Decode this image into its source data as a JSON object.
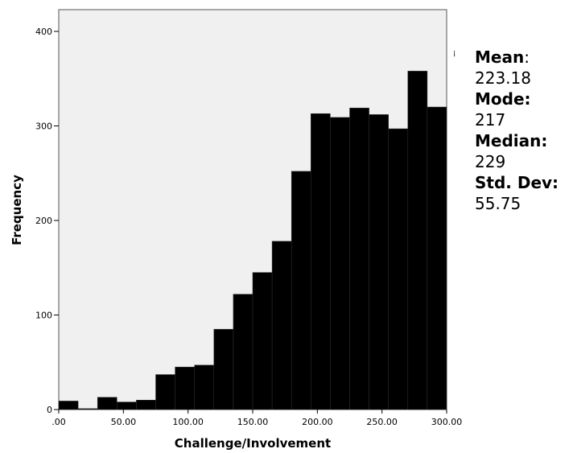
{
  "chart_data": {
    "type": "bar",
    "subtype": "histogram",
    "xlabel": "Challenge/Involvement",
    "ylabel": "Frequency",
    "xlim": [
      0,
      300
    ],
    "ylim": [
      0,
      400
    ],
    "x_ticks": [
      ".00",
      "50.00",
      "100.00",
      "150.00",
      "200.00",
      "250.00",
      "300.00"
    ],
    "x_tick_values": [
      0,
      50,
      100,
      150,
      200,
      250,
      300
    ],
    "y_ticks": [
      "0",
      "100",
      "200",
      "300",
      "400"
    ],
    "y_tick_values": [
      0,
      100,
      200,
      300,
      400
    ],
    "bin_width": 15,
    "bin_starts": [
      0,
      15,
      30,
      45,
      60,
      75,
      90,
      105,
      120,
      135,
      150,
      165,
      180,
      195,
      210,
      225,
      240,
      255,
      270,
      285
    ],
    "values": [
      9,
      1,
      13,
      8,
      10,
      37,
      45,
      47,
      85,
      122,
      145,
      178,
      252,
      313,
      309,
      319,
      312,
      297,
      358,
      320
    ],
    "bar_color": "#000000",
    "plot_background": "#f0f0f0",
    "grid": false,
    "legend": "none"
  },
  "stats": {
    "mean_label": "Mean",
    "mean_sep": ":",
    "mean_value": "223.18",
    "mode_label": "Mode:",
    "mode_value": "217",
    "median_label": "Median:",
    "median_value": "229",
    "std_label": "Std. Dev:",
    "std_value": "55.75"
  }
}
